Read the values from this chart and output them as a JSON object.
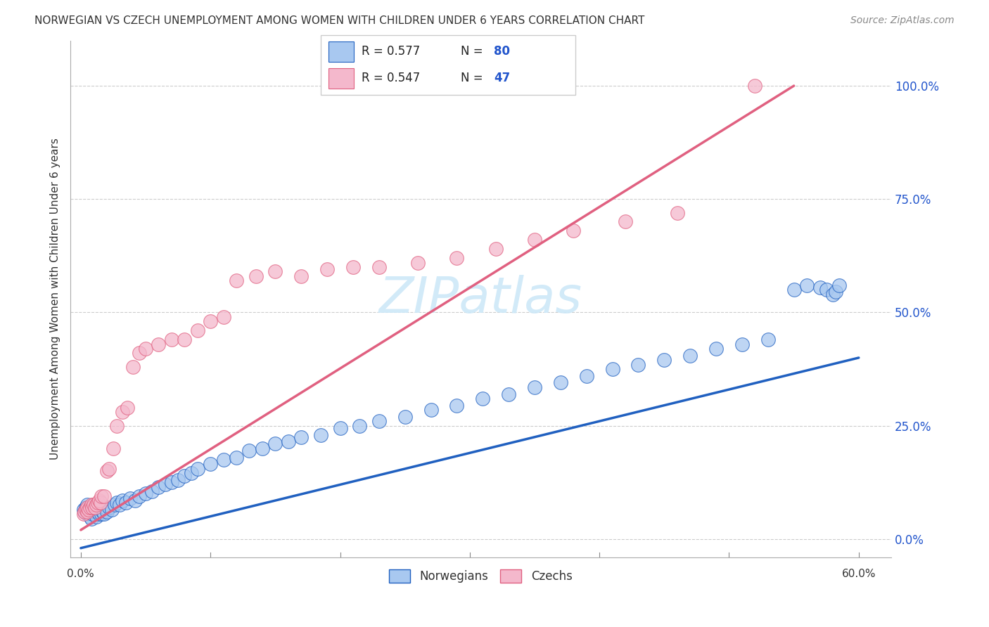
{
  "title": "NORWEGIAN VS CZECH UNEMPLOYMENT AMONG WOMEN WITH CHILDREN UNDER 6 YEARS CORRELATION CHART",
  "source": "Source: ZipAtlas.com",
  "ylabel": "Unemployment Among Women with Children Under 6 years",
  "right_yticks": [
    0.0,
    0.25,
    0.5,
    0.75,
    1.0
  ],
  "right_yticklabels": [
    "0.0%",
    "25.0%",
    "50.0%",
    "75.0%",
    "100.0%"
  ],
  "xmin": -0.008,
  "xmax": 0.625,
  "ymin": -0.04,
  "ymax": 1.1,
  "legend_r1": "R = 0.577",
  "legend_n1": "N = 80",
  "legend_r2": "R = 0.547",
  "legend_n2": "N = 47",
  "legend_label1": "Norwegians",
  "legend_label2": "Czechs",
  "color_norwegian": "#a8c8f0",
  "color_czech": "#f4b8cc",
  "color_line_norwegian": "#2060c0",
  "color_line_czech": "#e06080",
  "watermark_color": "#cde8f8",
  "norw_line_x0": 0.0,
  "norw_line_x1": 0.6,
  "norw_line_y0": -0.02,
  "norw_line_y1": 0.4,
  "czech_line_x0": 0.0,
  "czech_line_x1": 0.55,
  "czech_line_y0": 0.02,
  "czech_line_y1": 1.0,
  "norwegian_x": [
    0.002,
    0.003,
    0.004,
    0.005,
    0.005,
    0.006,
    0.006,
    0.007,
    0.007,
    0.008,
    0.008,
    0.009,
    0.009,
    0.01,
    0.01,
    0.011,
    0.011,
    0.012,
    0.012,
    0.013,
    0.014,
    0.015,
    0.016,
    0.017,
    0.018,
    0.019,
    0.02,
    0.022,
    0.024,
    0.026,
    0.028,
    0.03,
    0.032,
    0.035,
    0.038,
    0.042,
    0.045,
    0.05,
    0.055,
    0.06,
    0.065,
    0.07,
    0.075,
    0.08,
    0.085,
    0.09,
    0.1,
    0.11,
    0.12,
    0.13,
    0.14,
    0.15,
    0.16,
    0.17,
    0.185,
    0.2,
    0.215,
    0.23,
    0.25,
    0.27,
    0.29,
    0.31,
    0.33,
    0.35,
    0.37,
    0.39,
    0.41,
    0.43,
    0.45,
    0.47,
    0.49,
    0.51,
    0.53,
    0.55,
    0.56,
    0.57,
    0.575,
    0.58,
    0.582,
    0.585
  ],
  "norwegian_y": [
    0.065,
    0.06,
    0.07,
    0.055,
    0.075,
    0.06,
    0.065,
    0.05,
    0.07,
    0.045,
    0.065,
    0.055,
    0.07,
    0.06,
    0.065,
    0.055,
    0.06,
    0.05,
    0.07,
    0.06,
    0.055,
    0.065,
    0.055,
    0.06,
    0.055,
    0.07,
    0.06,
    0.07,
    0.065,
    0.075,
    0.08,
    0.075,
    0.085,
    0.08,
    0.09,
    0.085,
    0.095,
    0.1,
    0.105,
    0.115,
    0.12,
    0.125,
    0.13,
    0.14,
    0.145,
    0.155,
    0.165,
    0.175,
    0.18,
    0.195,
    0.2,
    0.21,
    0.215,
    0.225,
    0.23,
    0.245,
    0.25,
    0.26,
    0.27,
    0.285,
    0.295,
    0.31,
    0.32,
    0.335,
    0.345,
    0.36,
    0.375,
    0.385,
    0.395,
    0.405,
    0.42,
    0.43,
    0.44,
    0.55,
    0.56,
    0.555,
    0.55,
    0.54,
    0.545,
    0.56
  ],
  "czech_x": [
    0.002,
    0.003,
    0.004,
    0.005,
    0.005,
    0.006,
    0.007,
    0.008,
    0.009,
    0.01,
    0.011,
    0.012,
    0.013,
    0.014,
    0.015,
    0.016,
    0.018,
    0.02,
    0.022,
    0.025,
    0.028,
    0.032,
    0.036,
    0.04,
    0.045,
    0.05,
    0.06,
    0.07,
    0.08,
    0.09,
    0.1,
    0.11,
    0.12,
    0.135,
    0.15,
    0.17,
    0.19,
    0.21,
    0.23,
    0.26,
    0.29,
    0.32,
    0.35,
    0.38,
    0.42,
    0.46,
    0.52
  ],
  "czech_y": [
    0.055,
    0.06,
    0.065,
    0.06,
    0.07,
    0.065,
    0.07,
    0.075,
    0.07,
    0.075,
    0.07,
    0.075,
    0.08,
    0.085,
    0.08,
    0.095,
    0.095,
    0.15,
    0.155,
    0.2,
    0.25,
    0.28,
    0.29,
    0.38,
    0.41,
    0.42,
    0.43,
    0.44,
    0.44,
    0.46,
    0.48,
    0.49,
    0.57,
    0.58,
    0.59,
    0.58,
    0.595,
    0.6,
    0.6,
    0.61,
    0.62,
    0.64,
    0.66,
    0.68,
    0.7,
    0.72,
    1.0
  ]
}
